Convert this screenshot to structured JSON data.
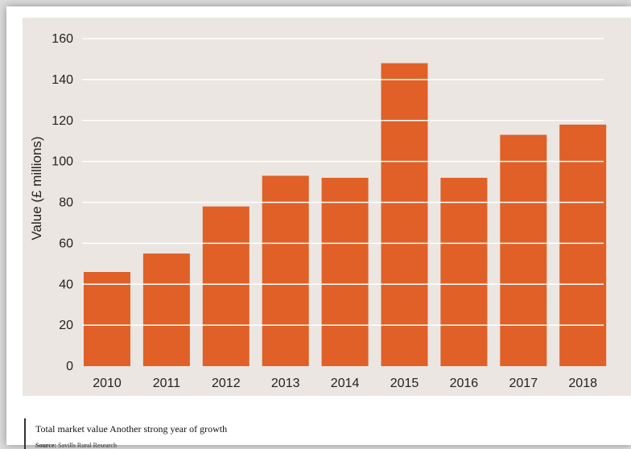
{
  "chart_data": {
    "type": "bar",
    "categories": [
      "2010",
      "2011",
      "2012",
      "2013",
      "2014",
      "2015",
      "2016",
      "2017",
      "2018"
    ],
    "values": [
      46,
      55,
      78,
      93,
      92,
      148,
      92,
      113,
      118
    ],
    "ylabel": "Value (£ millions)",
    "xlabel": "",
    "ylim": [
      0,
      160
    ],
    "yticks": [
      0,
      20,
      40,
      60,
      80,
      100,
      120,
      140,
      160
    ],
    "grid": "white horizontal lines across bars",
    "bar_color": "#e06027",
    "background_color": "#ebe6e1"
  },
  "caption": {
    "title": "Total market value Another strong year of growth",
    "source_label": "Source:",
    "source_text": "Savills Rural Research"
  }
}
